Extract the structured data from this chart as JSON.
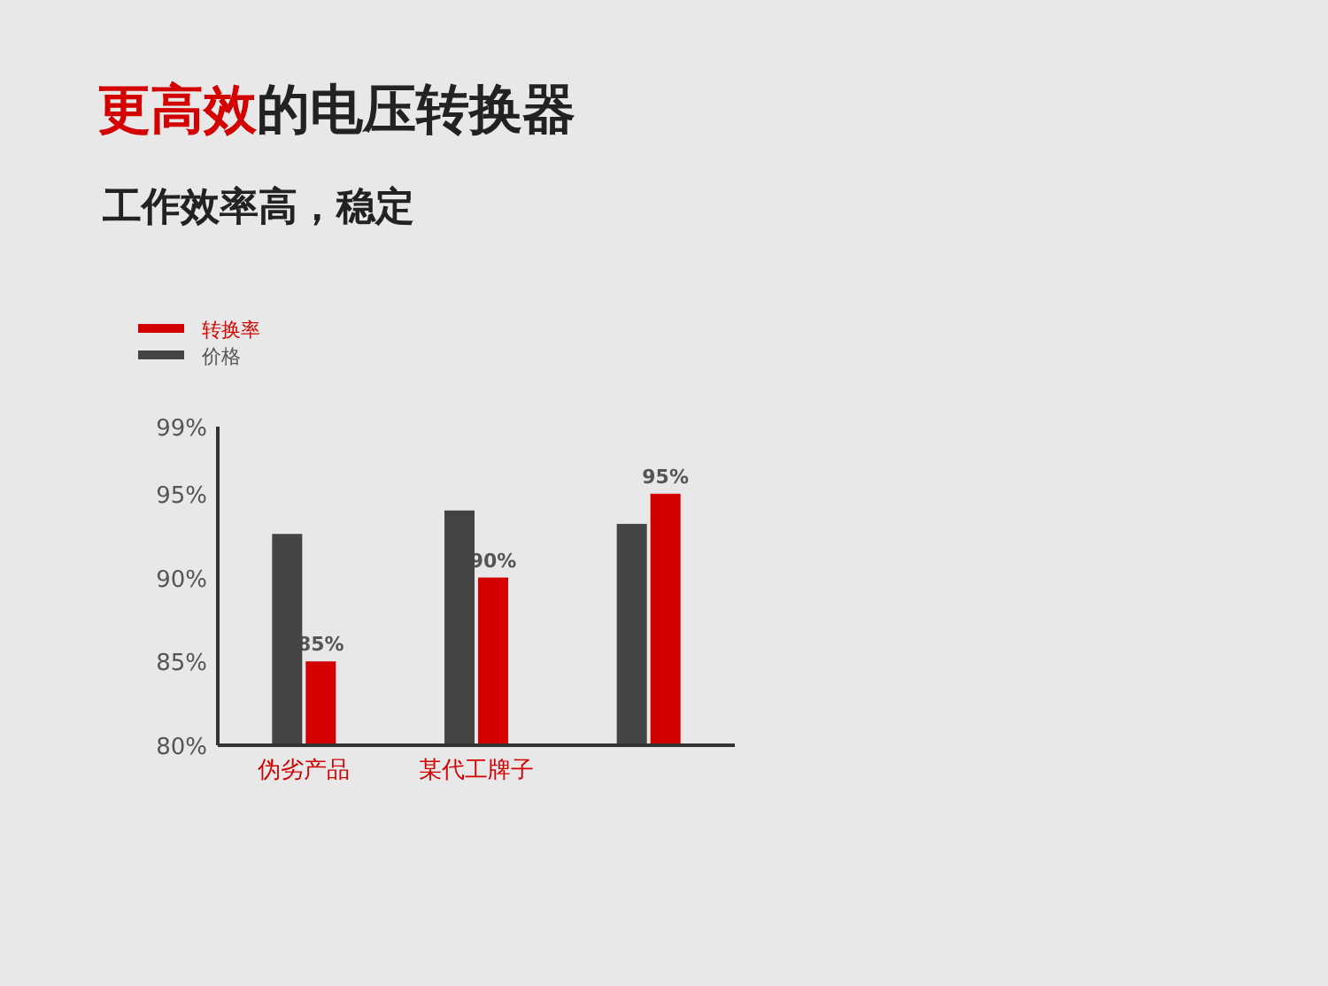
{
  "chart_data": {
    "type": "bar",
    "title": "更高效的电压转换器",
    "subtitle": "工作效率高，稳定",
    "categories": [
      "伪劣产品",
      "某代工牌子",
      null
    ],
    "series": [
      {
        "name": "转换率",
        "color": "#d40000",
        "values": [
          85,
          90,
          95
        ],
        "value_labels": [
          "85%",
          "90%",
          "95%"
        ]
      },
      {
        "name": "价格",
        "color": "#444444",
        "values": [
          92.6,
          94.0,
          93.2
        ]
      }
    ],
    "ylim": [
      80,
      99
    ],
    "yticks": [
      {
        "value": 80,
        "label": "80%"
      },
      {
        "value": 85,
        "label": "85%"
      },
      {
        "value": 90,
        "label": "90%"
      },
      {
        "value": 95,
        "label": "95%"
      },
      {
        "value": 99,
        "label": "99%"
      }
    ],
    "grid": false,
    "legend": "top left"
  }
}
